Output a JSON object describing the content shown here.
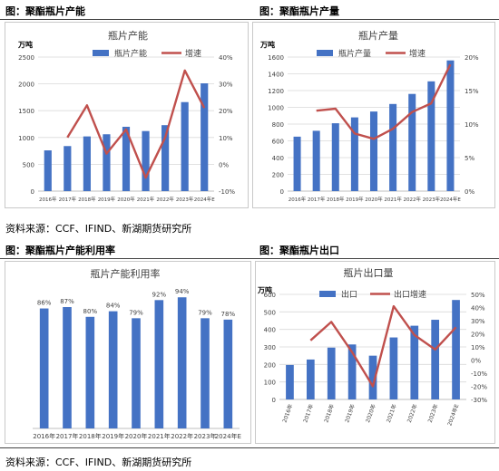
{
  "figures": [
    {
      "label": "图：聚酯瓶片产能"
    },
    {
      "label": "图：聚酯瓶片产量"
    },
    {
      "label": "图：聚酯瓶片产能利用率"
    },
    {
      "label": "图：聚酯瓶片出口"
    }
  ],
  "sources": [
    "资料来源：CCF、IFIND、新湖期货研究所",
    "资料来源：CCF、IFIND、新湖期货研究所"
  ],
  "colors": {
    "bar": "#4472c4",
    "line": "#c0504d",
    "grid": "#d9d9d9"
  },
  "chart_data": [
    {
      "type": "bar",
      "title": "瓶片产能",
      "ylabel": "万吨",
      "categories": [
        "2016年",
        "2017年",
        "2018年",
        "2019年",
        "2020年",
        "2021年",
        "2022年",
        "2023年",
        "2024年E"
      ],
      "ylim": [
        0,
        2500
      ],
      "yticks": [
        "0",
        "500",
        "1000",
        "1500",
        "2000",
        "2500"
      ],
      "y2lim": [
        -10,
        40
      ],
      "y2ticks": [
        "-10%",
        "0%",
        "10%",
        "20%",
        "30%",
        "40%"
      ],
      "series": [
        {
          "name": "瓶片产能",
          "type": "bar",
          "axis": "left",
          "values": [
            760,
            840,
            1020,
            1060,
            1200,
            1120,
            1230,
            1660,
            2010
          ]
        },
        {
          "name": "增速",
          "type": "line",
          "axis": "right",
          "values": [
            null,
            10,
            22,
            4,
            13,
            -5,
            10,
            35,
            21
          ]
        }
      ],
      "legend": "top"
    },
    {
      "type": "bar",
      "title": "瓶片产量",
      "ylabel": "万吨",
      "categories": [
        "2016年",
        "2017年",
        "2018年",
        "2019年",
        "2020年",
        "2021年",
        "2022年",
        "2023年",
        "2024年E"
      ],
      "ylim": [
        0,
        1600
      ],
      "yticks": [
        "0",
        "200",
        "400",
        "600",
        "800",
        "1000",
        "1200",
        "1400",
        "1600"
      ],
      "y2lim": [
        0,
        20
      ],
      "y2ticks": [
        "0%",
        "5%",
        "10%",
        "15%",
        "20%"
      ],
      "series": [
        {
          "name": "瓶片产量",
          "type": "bar",
          "axis": "left",
          "values": [
            650,
            720,
            810,
            880,
            950,
            1040,
            1160,
            1310,
            1560
          ]
        },
        {
          "name": "增速",
          "type": "line",
          "axis": "right",
          "values": [
            null,
            12,
            12.3,
            8.6,
            7.8,
            9.3,
            11.8,
            13.1,
            18.9
          ]
        }
      ],
      "legend": "top"
    },
    {
      "type": "bar",
      "title": "瓶片产能利用率",
      "categories": [
        "2016年",
        "2017年",
        "2018年",
        "2019年",
        "2020年",
        "2021年",
        "2022年",
        "2023年",
        "2024年E"
      ],
      "ylim": [
        0,
        100
      ],
      "series": [
        {
          "name": "瓶片产能利用率",
          "type": "bar",
          "values": [
            86,
            87,
            80,
            84,
            79,
            92,
            94,
            79,
            78
          ]
        }
      ],
      "value_labels": [
        "86%",
        "87%",
        "80%",
        "84%",
        "79%",
        "92%",
        "94%",
        "79%",
        "78%"
      ]
    },
    {
      "type": "bar",
      "title": "瓶片出口量",
      "ylabel": "万吨",
      "categories": [
        "2016年",
        "2017年",
        "2018年",
        "2019年",
        "2020年",
        "2021年",
        "2022年",
        "2023年",
        "2024年E"
      ],
      "ylim": [
        0,
        600
      ],
      "yticks": [
        "0",
        "100",
        "200",
        "300",
        "400",
        "500",
        "600"
      ],
      "y2lim": [
        -30,
        50
      ],
      "y2ticks": [
        "-30%",
        "-20%",
        "-10%",
        "0%",
        "10%",
        "20%",
        "30%",
        "40%",
        "50%"
      ],
      "series": [
        {
          "name": "出口",
          "type": "bar",
          "axis": "left",
          "values": [
            197,
            228,
            296,
            314,
            250,
            354,
            421,
            455,
            568
          ]
        },
        {
          "name": "出口增速",
          "type": "line",
          "axis": "right",
          "values": [
            null,
            15,
            29,
            6,
            -20,
            41,
            19,
            8,
            25
          ]
        }
      ],
      "legend": "top"
    }
  ]
}
